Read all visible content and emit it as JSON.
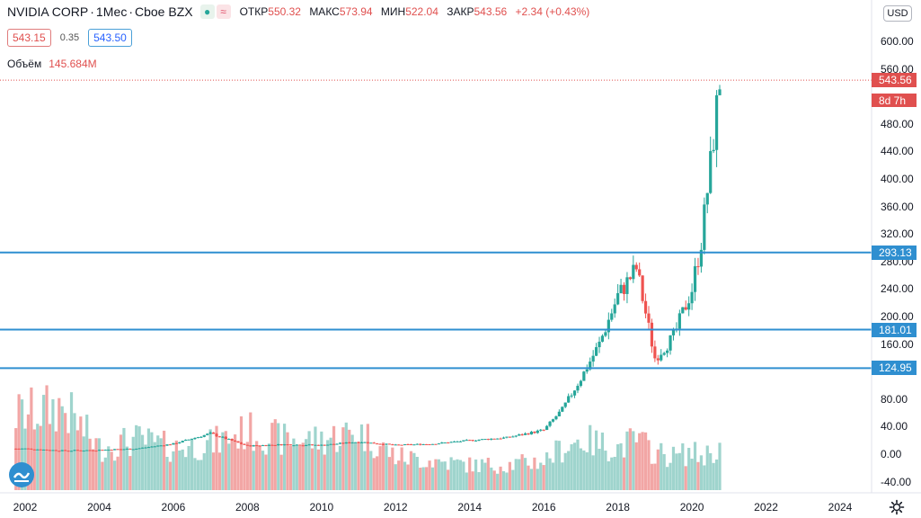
{
  "legend": {
    "symbol": "NVIDIA CORP",
    "interval": "1Мес",
    "exchange": "Cboe BZX",
    "eye_icon": "eye-icon",
    "compare_icon": "≈",
    "open_label": "ОТКР",
    "open_value": "550.32",
    "high_label": "МАКС",
    "high_value": "573.94",
    "low_label": "МИН",
    "low_value": "522.04",
    "close_label": "ЗАКР",
    "close_value": "543.56",
    "change": "+2.34 (+0.43%)",
    "bid": "543.15",
    "spread": "0.35",
    "ask": "543.50",
    "volume_label": "Объём",
    "volume_value": "145.684M"
  },
  "price_axis": {
    "currency": "USD",
    "ticks": [
      "600.00",
      "560.00",
      "480.00",
      "440.00",
      "400.00",
      "360.00",
      "320.00",
      "280.00",
      "240.00",
      "200.00",
      "160.00",
      "120.00",
      "80.00",
      "40.00",
      "0.00",
      "-40.00"
    ],
    "last_price": "543.56",
    "countdown": "8d 7h"
  },
  "horizontal_levels": [
    {
      "value": "293.13"
    },
    {
      "value": "181.01"
    },
    {
      "value": "124.95"
    }
  ],
  "time_axis": {
    "ticks": [
      "2002",
      "2004",
      "2006",
      "2008",
      "2010",
      "2012",
      "2014",
      "2016",
      "2018",
      "2020",
      "2022",
      "2024"
    ]
  },
  "colors": {
    "up": "#26a69a",
    "down": "#ef5350",
    "volume_up": "#9fd4cd",
    "volume_down": "#f2a6a5",
    "level_line": "#2f8fd0"
  },
  "chart_data": {
    "type": "candlestick",
    "title": "NVIDIA CORP · 1Мес · Cboe BZX",
    "x": [
      "2002",
      "2003",
      "2004",
      "2005",
      "2006",
      "2007",
      "2008",
      "2009",
      "2010",
      "2011",
      "2012",
      "2013",
      "2014",
      "2015",
      "2016",
      "2016.5",
      "2017",
      "2017.5",
      "2018",
      "2018.5",
      "2019",
      "2019.5",
      "2020",
      "2020.25",
      "2020.5",
      "2020.75"
    ],
    "close": [
      8,
      5,
      6,
      8,
      15,
      30,
      12,
      14,
      13,
      18,
      13,
      15,
      20,
      24,
      35,
      65,
      110,
      160,
      230,
      270,
      140,
      170,
      240,
      310,
      420,
      543.56
    ],
    "volume_relative": [
      0.9,
      1.0,
      0.5,
      0.6,
      0.5,
      0.55,
      0.7,
      0.6,
      0.6,
      0.7,
      0.4,
      0.35,
      0.3,
      0.3,
      0.35,
      0.5,
      0.6,
      0.55,
      0.5,
      0.6,
      0.45,
      0.4,
      0.45,
      0.4,
      0.45,
      0.5
    ],
    "levels": [
      293.13,
      181.01,
      124.95
    ],
    "ylim": [
      -55,
      630
    ],
    "xlabel": "",
    "ylabel": ""
  }
}
